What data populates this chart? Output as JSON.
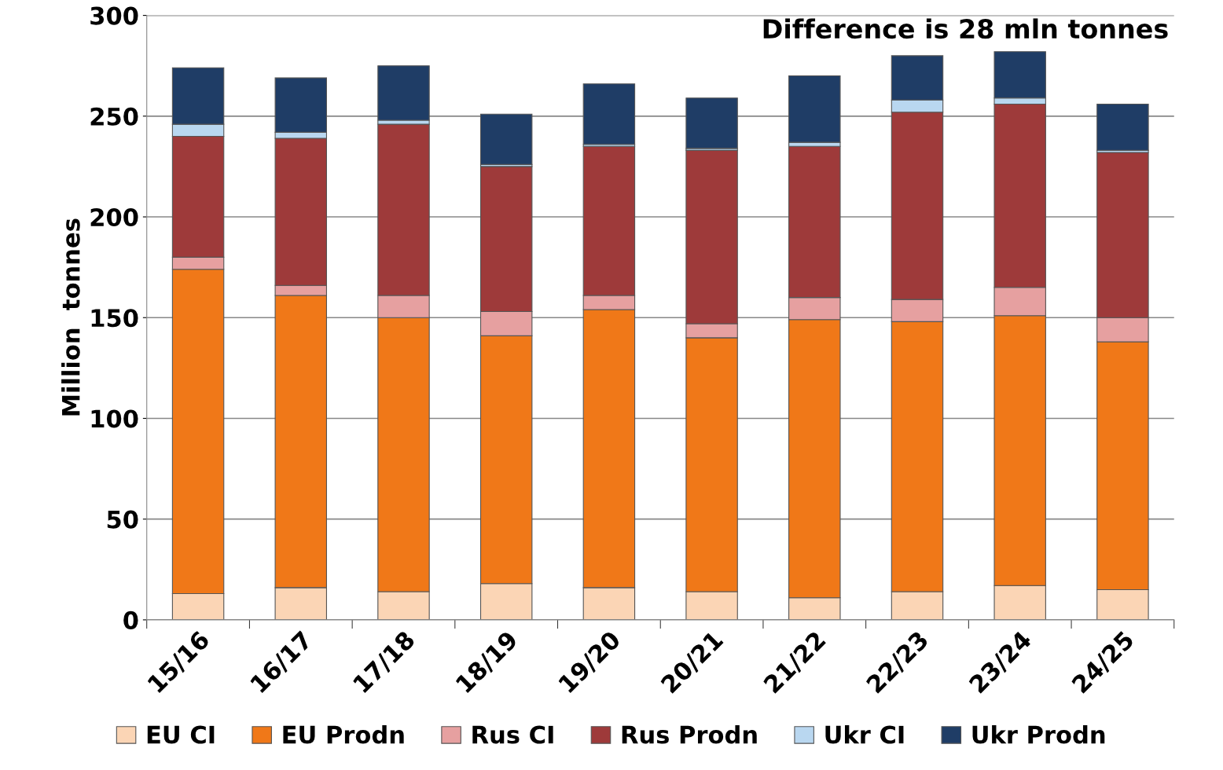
{
  "chart_data": {
    "type": "bar",
    "stacked": true,
    "ylabel": "Million  tonnes",
    "annotations": [
      "Difference is 28 mln tonnes"
    ],
    "categories": [
      "15/16",
      "16/17",
      "17/18",
      "18/19",
      "19/20",
      "20/21",
      "21/22",
      "22/23",
      "23/24",
      "24/25"
    ],
    "series": [
      {
        "name": "EU CI",
        "color": "#fbd5b5",
        "values": [
          13,
          16,
          14,
          18,
          16,
          14,
          11,
          14,
          17,
          15
        ]
      },
      {
        "name": "EU Prodn",
        "color": "#f07818",
        "values": [
          161,
          145,
          136,
          123,
          138,
          126,
          138,
          134,
          134,
          123
        ]
      },
      {
        "name": "Rus CI",
        "color": "#e6a0a0",
        "values": [
          6,
          5,
          11,
          12,
          7,
          7,
          11,
          11,
          14,
          12
        ]
      },
      {
        "name": "Rus Prodn",
        "color": "#9e3a3a",
        "values": [
          60,
          73,
          85,
          72,
          74,
          86,
          75,
          93,
          91,
          82
        ]
      },
      {
        "name": "Ukr CI",
        "color": "#b9d7f0",
        "values": [
          6,
          3,
          2,
          1,
          1,
          1,
          2,
          6,
          3,
          1
        ]
      },
      {
        "name": "Ukr Prodn",
        "color": "#1f3d66",
        "values": [
          28,
          27,
          27,
          25,
          30,
          25,
          33,
          22,
          23,
          23
        ]
      }
    ],
    "ylim": [
      0,
      300
    ],
    "yticks": [
      0,
      50,
      100,
      150,
      200,
      250,
      300
    ],
    "grid": "y",
    "legend": "bottom"
  }
}
